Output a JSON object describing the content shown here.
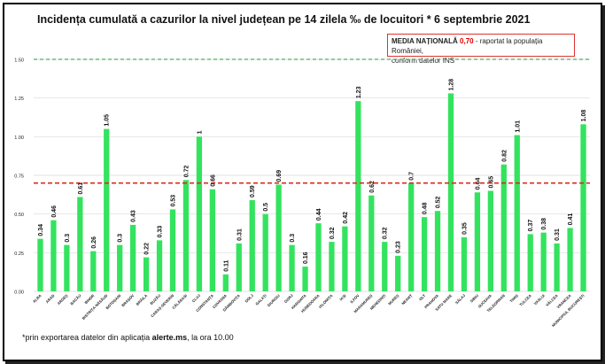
{
  "title": "Incidența cumulată a cazurilor la nivel județean pe 14 zilela ‰ de locuitori * 6 septembrie 2021",
  "legend": {
    "label": "MEDIA NAȚIONALĂ",
    "value": "0,70",
    "desc1": " - raportat la populația României,",
    "desc2": "conform datelor INS"
  },
  "footnote": {
    "prefix": "*prin exportarea datelor din aplicația ",
    "source": "alerte.ms",
    "suffix": ", la ora 10.00"
  },
  "colors": {
    "bar": "#33e35e",
    "national_line": "#d62b1e",
    "top_line": "#1e9e3a",
    "grid": "#d9d9d9"
  },
  "chart_data": {
    "type": "bar",
    "categories": [
      "ALBA",
      "ARAD",
      "ARGEȘ",
      "BACĂU",
      "BIHOR",
      "BISTRIȚA-NĂSĂUD",
      "BOTOȘANI",
      "BRAȘOV",
      "BRĂILA",
      "BUZĂU",
      "CARAȘ-SEVERIN",
      "CĂLĂRAȘI",
      "CLUJ",
      "CONSTANȚA",
      "COVASNA",
      "DÂMBOVIȚA",
      "DOLJ",
      "GALAȚI",
      "GIURGIU",
      "GORJ",
      "HARGHITA",
      "HUNEDOARA",
      "IALOMIȚA",
      "IAȘI",
      "ILFOV",
      "MARAMUREȘ",
      "MEHEDINȚI",
      "MUREȘ",
      "NEAMȚ",
      "OLT",
      "PRAHOVA",
      "SATU MARE",
      "SĂLAJ",
      "SIBIU",
      "SUCEAVA",
      "TELEORMAN",
      "TIMIȘ",
      "TULCEA",
      "VASLUI",
      "VÂLCEA",
      "VRANCEA",
      "MUNICIPIUL BUCUREȘTI"
    ],
    "values": [
      0.34,
      0.46,
      0.3,
      0.61,
      0.26,
      1.05,
      0.3,
      0.43,
      0.22,
      0.33,
      0.53,
      0.72,
      1,
      0.66,
      0.11,
      0.31,
      0.59,
      0.5,
      0.69,
      0.3,
      0.16,
      0.44,
      0.32,
      0.42,
      1.23,
      0.62,
      0.32,
      0.23,
      0.7,
      0.48,
      0.52,
      1.28,
      0.35,
      0.64,
      0.65,
      0.82,
      1.01,
      0.37,
      0.38,
      0.31,
      0.41,
      1.08
    ],
    "value_labels": [
      "0.34",
      "0.46",
      "0.3",
      "0.61",
      "0.26",
      "1.05",
      "0.3",
      "0.43",
      "0.22",
      "0.33",
      "0.53",
      "0.72",
      "1",
      "0.66",
      "0.11",
      "0.31",
      "0.59",
      "0.5",
      "0.69",
      "0.3",
      "0.16",
      "0.44",
      "0.32",
      "0.42",
      "1.23",
      "0.62",
      "0.32",
      "0.23",
      "0.7",
      "0.48",
      "0.52",
      "1.28",
      "0.35",
      "0.64",
      "0.65",
      "0.82",
      "1.01",
      "0.37",
      "0.38",
      "0.31",
      "0.41",
      "1.08"
    ],
    "y_ticks": [
      "0.00",
      "0.25",
      "0.50",
      "0.75",
      "1.00",
      "1.25",
      "1.50"
    ],
    "ylim": [
      0,
      1.5
    ],
    "national_average": 0.7,
    "reference_line": 1.5,
    "grid": true
  }
}
